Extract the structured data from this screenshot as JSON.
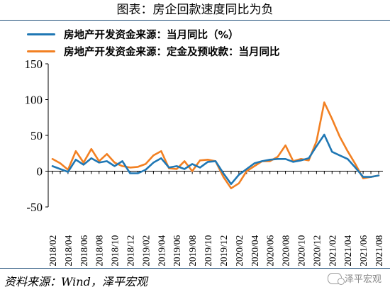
{
  "page": {
    "title": "图表：房企回款速度同比为负",
    "source": "资料来源：Wind，泽平宏观",
    "watermark": "泽平宏观"
  },
  "chart_data": {
    "type": "line",
    "title": "",
    "xlabel": "",
    "ylabel": "",
    "ylim": [
      -50,
      150
    ],
    "yticks": [
      -50,
      0,
      50,
      100,
      150
    ],
    "grid": false,
    "legend_position": "top-left",
    "x_tick_labels": [
      "2018/02",
      "2018/04",
      "2018/06",
      "2018/08",
      "2018/10",
      "2018/12",
      "2019/02",
      "2019/04",
      "2019/06",
      "2019/08",
      "2019/10",
      "2019/12",
      "2020/02",
      "2020/04",
      "2020/06",
      "2020/08",
      "2020/10",
      "2020/12",
      "2021/02",
      "2021/04",
      "2021/06",
      "2021/08"
    ],
    "x": [
      "2018/02",
      "2018/03",
      "2018/04",
      "2018/05",
      "2018/06",
      "2018/07",
      "2018/08",
      "2018/09",
      "2018/10",
      "2018/11",
      "2018/12",
      "2019/01",
      "2019/02",
      "2019/03",
      "2019/04",
      "2019/05",
      "2019/06",
      "2019/07",
      "2019/08",
      "2019/09",
      "2019/10",
      "2019/11",
      "2019/12",
      "2020/01",
      "2020/02",
      "2020/03",
      "2020/04",
      "2020/05",
      "2020/06",
      "2020/07",
      "2020/08",
      "2020/09",
      "2020/10",
      "2020/11",
      "2020/12",
      "2021/01",
      "2021/02",
      "2021/03",
      "2021/04",
      "2021/05",
      "2021/06",
      "2021/07",
      "2021/08"
    ],
    "series": [
      {
        "name": "房地产开发资金来源：当月同比（%）",
        "color": "#1f77b4",
        "values": [
          7,
          3,
          -1,
          16,
          9,
          18,
          12,
          14,
          7,
          14,
          -3,
          -3,
          2,
          12,
          18,
          5,
          7,
          3,
          10,
          5,
          13,
          14,
          -3,
          -18,
          -5,
          3,
          11,
          14,
          16,
          17,
          17,
          13,
          15,
          18,
          35,
          51,
          27,
          22,
          17,
          5,
          -8,
          -8,
          -6
        ]
      },
      {
        "name": "房地产开发资金来源：定金及预收款：当月同比",
        "color": "#f28022",
        "values": [
          17,
          11,
          2,
          28,
          12,
          31,
          14,
          24,
          12,
          7,
          5,
          6,
          10,
          22,
          28,
          4,
          3,
          14,
          0,
          15,
          16,
          14,
          -8,
          -24,
          -17,
          0,
          7,
          14,
          14,
          20,
          36,
          14,
          17,
          15,
          42,
          96,
          73,
          48,
          28,
          10,
          -10,
          -8,
          -6
        ]
      }
    ]
  }
}
